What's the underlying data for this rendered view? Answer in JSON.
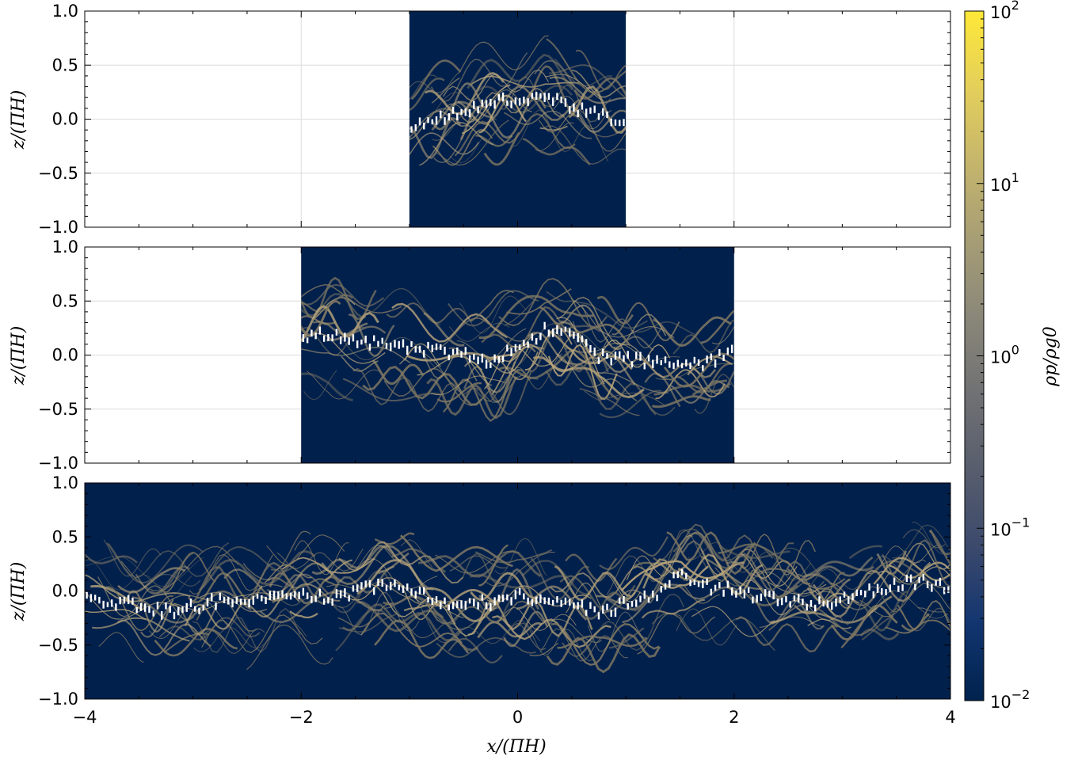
{
  "colors": {
    "background_field": "#02204c",
    "filament": "#b9a57a",
    "filament_dim": "#7d7662",
    "midplane": "#ffffff",
    "colormap": [
      "#00224e",
      "#123570",
      "#3b496c",
      "#575d6d",
      "#707173",
      "#8a8779",
      "#a69d75",
      "#c4b56c",
      "#e4cf5b",
      "#fee838"
    ]
  },
  "chart_data": [
    {
      "type": "heatmap",
      "panel": "top",
      "xlabel": "",
      "ylabel": "z/(ΠH)",
      "xlim": [
        -4,
        4
      ],
      "ylim": [
        -1,
        1
      ],
      "domain_x": [
        -1,
        1
      ],
      "grid": true,
      "x_ticks": [
        -4,
        -2,
        0,
        2,
        4
      ],
      "y_ticks": [
        "1.0",
        "0.5",
        "0.0",
        "−0.5",
        "−1.0"
      ],
      "midplane": [
        [
          -1.0,
          -0.05
        ],
        [
          -0.75,
          0.0
        ],
        [
          -0.5,
          0.07
        ],
        [
          -0.25,
          0.15
        ],
        [
          0.0,
          0.18
        ],
        [
          0.25,
          0.2
        ],
        [
          0.5,
          0.1
        ],
        [
          0.75,
          0.03
        ],
        [
          1.0,
          -0.05
        ]
      ]
    },
    {
      "type": "heatmap",
      "panel": "middle",
      "xlabel": "",
      "ylabel": "z/(ΠH)",
      "xlim": [
        -4,
        4
      ],
      "ylim": [
        -1,
        1
      ],
      "domain_x": [
        -2,
        2
      ],
      "grid": true,
      "x_ticks": [
        -4,
        -2,
        0,
        2,
        4
      ],
      "y_ticks": [
        "1.0",
        "0.5",
        "0.0",
        "−0.5",
        "−1.0"
      ],
      "midplane": [
        [
          -2.0,
          0.12
        ],
        [
          -1.75,
          0.2
        ],
        [
          -1.5,
          0.15
        ],
        [
          -1.25,
          0.1
        ],
        [
          -1.0,
          0.06
        ],
        [
          -0.75,
          0.03
        ],
        [
          -0.5,
          0.0
        ],
        [
          -0.25,
          -0.05
        ],
        [
          0.0,
          0.08
        ],
        [
          0.25,
          0.22
        ],
        [
          0.5,
          0.2
        ],
        [
          0.75,
          0.0
        ],
        [
          1.0,
          -0.04
        ],
        [
          1.25,
          -0.06
        ],
        [
          1.5,
          -0.1
        ],
        [
          1.75,
          -0.08
        ],
        [
          2.0,
          0.05
        ]
      ]
    },
    {
      "type": "heatmap",
      "panel": "bottom",
      "xlabel": "x/(ΠH)",
      "ylabel": "z/(ΠH)",
      "xlim": [
        -4,
        4
      ],
      "ylim": [
        -1,
        1
      ],
      "domain_x": [
        -4,
        4
      ],
      "grid": false,
      "x_ticks": [
        "−4",
        "−2",
        "0",
        "2",
        "4"
      ],
      "y_ticks": [
        "1.0",
        "0.5",
        "0.0",
        "−0.5",
        "−1.0"
      ],
      "midplane": [
        [
          -4.0,
          0.0
        ],
        [
          -3.75,
          -0.1
        ],
        [
          -3.5,
          -0.15
        ],
        [
          -3.25,
          -0.18
        ],
        [
          -3.0,
          -0.15
        ],
        [
          -2.75,
          -0.08
        ],
        [
          -2.5,
          -0.12
        ],
        [
          -2.25,
          -0.05
        ],
        [
          -2.0,
          0.0
        ],
        [
          -1.75,
          -0.08
        ],
        [
          -1.5,
          0.0
        ],
        [
          -1.25,
          0.08
        ],
        [
          -1.0,
          0.05
        ],
        [
          -0.75,
          -0.1
        ],
        [
          -0.5,
          -0.12
        ],
        [
          -0.25,
          -0.1
        ],
        [
          0.0,
          -0.05
        ],
        [
          0.25,
          -0.12
        ],
        [
          0.5,
          -0.12
        ],
        [
          0.75,
          -0.2
        ],
        [
          1.0,
          -0.12
        ],
        [
          1.25,
          -0.05
        ],
        [
          1.5,
          0.15
        ],
        [
          1.75,
          0.05
        ],
        [
          2.0,
          0.0
        ],
        [
          2.25,
          -0.05
        ],
        [
          2.5,
          -0.08
        ],
        [
          2.75,
          -0.12
        ],
        [
          3.0,
          -0.08
        ],
        [
          3.25,
          -0.02
        ],
        [
          3.5,
          0.05
        ],
        [
          3.75,
          0.1
        ],
        [
          4.0,
          0.02
        ]
      ]
    }
  ],
  "colorbar": {
    "label": "ρp/ρg0",
    "scale": "log",
    "range": [
      0.01,
      100
    ],
    "ticks": [
      {
        "value": 100,
        "base": "10",
        "exp": "2"
      },
      {
        "value": 10,
        "base": "10",
        "exp": "1"
      },
      {
        "value": 1,
        "base": "10",
        "exp": "0"
      },
      {
        "value": 0.1,
        "base": "10",
        "exp": "−1"
      },
      {
        "value": 0.01,
        "base": "10",
        "exp": "−2"
      }
    ]
  }
}
